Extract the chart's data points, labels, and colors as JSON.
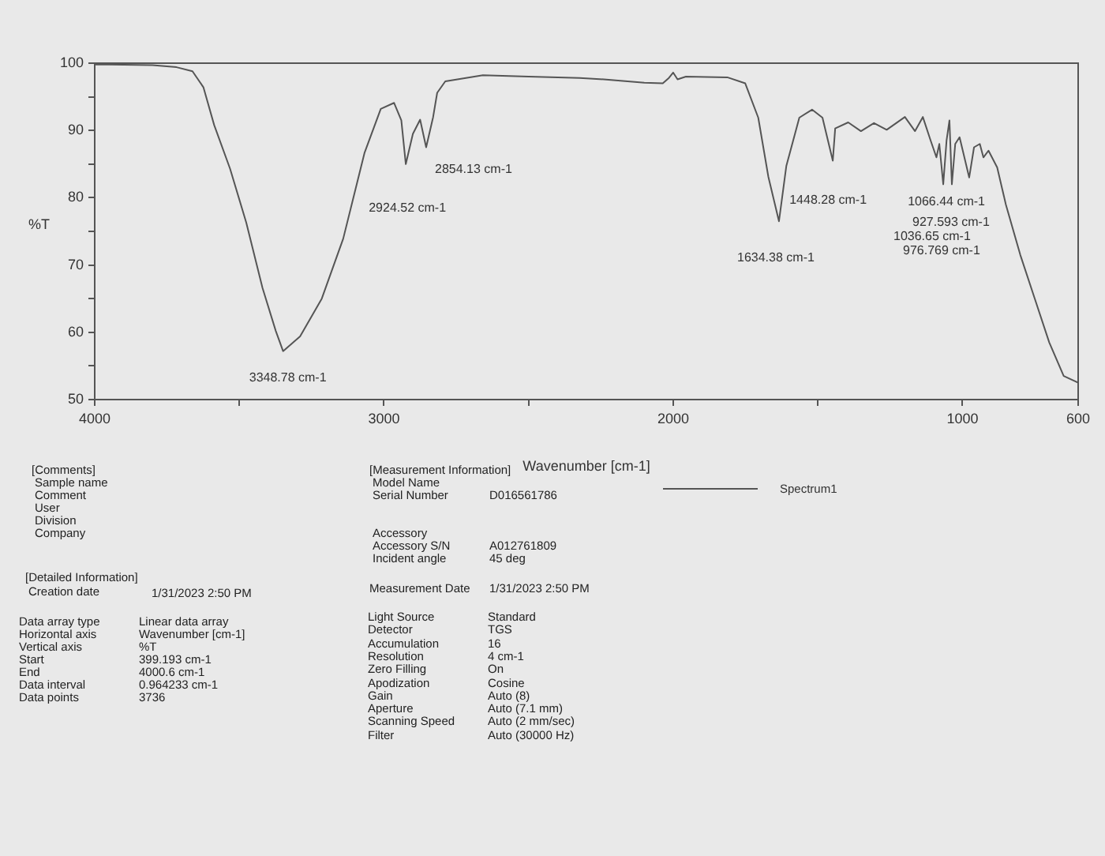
{
  "chart_data": {
    "type": "line",
    "xlabel": "Wavenumber [cm-1]",
    "ylabel": "%T",
    "xlim": [
      4000,
      600
    ],
    "ylim": [
      50,
      100
    ],
    "xticks": [
      4000,
      {
        "value": 3500,
        "label": null
      },
      3000,
      {
        "value": 2500,
        "label": null
      },
      2000,
      {
        "value": 1500,
        "label": null
      },
      1000,
      600
    ],
    "yticks": [
      50,
      {
        "value": 55,
        "label": null
      },
      60,
      {
        "value": 65,
        "label": null
      },
      70,
      {
        "value": 75,
        "label": null
      },
      80,
      {
        "value": 85,
        "label": null
      },
      90,
      {
        "value": 95,
        "label": null
      },
      100
    ],
    "legend": "bottom",
    "marker": "none",
    "line_style": "solid",
    "series": [
      {
        "name": "Spectrum1",
        "color": "#555555",
        "x": [
          4000,
          3950,
          3800,
          3717,
          3662,
          3624,
          3587,
          3532,
          3476,
          3420,
          3374,
          3348.78,
          3290,
          3215,
          3141,
          3067,
          3011,
          2965,
          2940,
          2924.52,
          2900,
          2875,
          2854.13,
          2830,
          2816,
          2788,
          2658,
          2500,
          2323,
          2240,
          2100,
          2036,
          2015,
          2000,
          1985,
          1956,
          1813,
          1751,
          1706,
          1671,
          1634.38,
          1609,
          1564,
          1520,
          1484,
          1448.28,
          1440,
          1395,
          1351,
          1306,
          1262,
          1199,
          1164,
          1137,
          1110,
          1090,
          1080,
          1066.44,
          1055,
          1045,
          1036.65,
          1025,
          1010,
          976.769,
          960,
          940,
          927.593,
          910,
          880,
          850,
          800,
          750,
          700,
          650,
          600
        ],
        "values": [
          99.8,
          99.8,
          99.7,
          99.4,
          98.8,
          96.4,
          90.8,
          84.3,
          76.3,
          66.6,
          60.2,
          57.2,
          59.4,
          65,
          73.9,
          86.7,
          93.2,
          94.1,
          91.5,
          85,
          89.5,
          91.6,
          87.5,
          92,
          95.6,
          97.3,
          98.2,
          98,
          97.8,
          97.6,
          97.1,
          97,
          97.8,
          98.6,
          97.6,
          98,
          97.9,
          97,
          91.9,
          83.1,
          76.5,
          84.7,
          91.9,
          93.1,
          91.9,
          85.5,
          90.3,
          91.2,
          89.9,
          91.1,
          90.1,
          92,
          89.9,
          92,
          88.5,
          86,
          88,
          82,
          88.5,
          91.5,
          82,
          88,
          89,
          83,
          87.5,
          88,
          86,
          87,
          84.5,
          79,
          71.5,
          65,
          58.5,
          53.5,
          52.5
        ]
      }
    ],
    "annotations": [
      {
        "text": "3348.78 cm-1",
        "x": 3348.78,
        "y": 57.2
      },
      {
        "text": "2924.52 cm-1",
        "x": 2924.52,
        "y": 85
      },
      {
        "text": "2854.13 cm-1",
        "x": 2854.13,
        "y": 87.5
      },
      {
        "text": "1634.38 cm-1",
        "x": 1634.38,
        "y": 76.5
      },
      {
        "text": "1448.28 cm-1",
        "x": 1448.28,
        "y": 85.5
      },
      {
        "text": "1066.44 cm-1",
        "x": 1066.44,
        "y": 82
      },
      "[Comments]",
      "Sample name",
      "Comment",
      "User",
      "Division",
      "Company",
      "[Detailed Information]",
      "Creation date",
      "1/31/2023 2:50 PM",
      "Data array type",
      "Linear data array",
      "Horizontal axis",
      "Wavenumber [cm-1]",
      "Vertical axis",
      "%T",
      "Start",
      "399.193 cm-1",
      "End",
      "4000.6 cm-1",
      "Data interval",
      "0.964233 cm-1",
      "Data points",
      "3736",
      "[Measurement Information]",
      "Model Name",
      "Serial Number",
      "D016561786",
      "Accessory",
      "Accessory S/N",
      "A012761809",
      "Incident angle",
      "45 deg",
      "Measurement Date",
      "1/31/2023 2:50 PM",
      "Light Source",
      "Standard",
      "Detector",
      "TGS",
      "Accumulation",
      "16",
      "Resolution",
      "4 cm-1",
      "Zero Filling",
      "On",
      "Apodization",
      "Cosine",
      "Gain",
      "Auto (8)",
      "Aperture",
      "Auto (7.1 mm)",
      "Scanning Speed",
      "Auto (2 mm/sec)",
      "Filter",
      "Auto (30000 Hz)",
      "927.593 cm-1",
      "1036.65 cm-1",
      "976.769 cm-1"
    ]
  }
}
